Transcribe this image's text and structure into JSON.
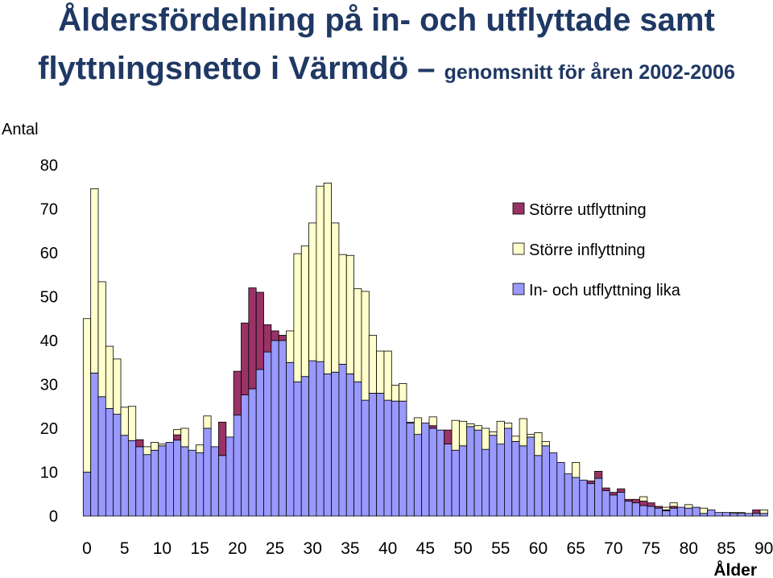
{
  "title": {
    "line1": "Åldersfördelning på in- och utflyttade samt",
    "line2_main": "flyttningsnetto i Värmdö –",
    "line2_sub": "genomsnitt för åren 2002-2006"
  },
  "chart_data": {
    "type": "bar",
    "stacked": true,
    "ylabel": "Antal",
    "xlabel": "Ålder",
    "ylim": [
      0,
      80
    ],
    "yticks": [
      0,
      10,
      20,
      30,
      40,
      50,
      60,
      70,
      80
    ],
    "xticks": [
      0,
      5,
      10,
      15,
      20,
      25,
      30,
      35,
      40,
      45,
      50,
      55,
      60,
      65,
      70,
      75,
      80,
      85,
      90
    ],
    "xlim": [
      -1,
      90
    ],
    "legend_position": "right",
    "grid": false,
    "x": [
      0,
      1,
      2,
      3,
      4,
      5,
      6,
      7,
      8,
      9,
      10,
      11,
      12,
      13,
      14,
      15,
      16,
      17,
      18,
      19,
      20,
      21,
      22,
      23,
      24,
      25,
      26,
      27,
      28,
      29,
      30,
      31,
      32,
      33,
      34,
      35,
      36,
      37,
      38,
      39,
      40,
      41,
      42,
      43,
      44,
      45,
      46,
      47,
      48,
      49,
      50,
      51,
      52,
      53,
      54,
      55,
      56,
      57,
      58,
      59,
      60,
      61,
      62,
      63,
      64,
      65,
      66,
      67,
      68,
      69,
      70,
      71,
      72,
      73,
      74,
      75,
      76,
      77,
      78,
      79,
      80,
      81,
      82,
      83,
      84,
      85,
      86,
      87,
      88,
      89,
      90
    ],
    "series": [
      {
        "name": "In- och utflyttning lika",
        "color": "#9999ff",
        "values": [
          10,
          32.6,
          27.2,
          24.5,
          23.2,
          18.4,
          17.2,
          15.8,
          14.0,
          15.0,
          16.0,
          16.8,
          17.3,
          15.8,
          15.0,
          14.4,
          20.0,
          15.8,
          13.8,
          18.0,
          23.0,
          27.6,
          29.0,
          33.4,
          37.4,
          40.0,
          40.0,
          35.0,
          30.6,
          31.8,
          35.4,
          35.2,
          32.4,
          32.8,
          34.6,
          32.4,
          30.6,
          26.4,
          28.0,
          28.0,
          26.4,
          26.2,
          26.2,
          21.2,
          18.6,
          21.2,
          20.0,
          19.6,
          16.4,
          15.0,
          16.0,
          20.4,
          19.6,
          15.2,
          18.4,
          16.4,
          20.0,
          17.0,
          16.0,
          18.0,
          13.8,
          16.0,
          14.4,
          12.2,
          9.6,
          8.8,
          8.2,
          7.4,
          8.6,
          5.8,
          4.8,
          5.4,
          3.4,
          3.0,
          2.4,
          2.2,
          1.8,
          1.2,
          1.8,
          2.0,
          1.8,
          2.0,
          0.6,
          1.4,
          0.8,
          0.8,
          0.6,
          0.6,
          0.6,
          0.6,
          0.6
        ]
      },
      {
        "name": "Större utflyttning",
        "color": "#993366",
        "values": [
          0,
          0,
          0,
          0,
          0,
          0,
          0,
          1.6,
          0,
          0,
          0,
          0,
          1.2,
          0,
          0,
          0,
          0,
          0,
          7.6,
          0,
          10,
          16.4,
          23.0,
          17.6,
          6.2,
          2.2,
          1.2,
          0,
          0,
          0,
          0,
          0,
          0,
          0,
          0,
          0,
          0,
          0,
          0,
          0,
          0,
          0,
          0,
          0,
          0,
          0,
          0.6,
          0,
          3.2,
          0,
          0,
          0,
          0,
          0,
          0,
          0,
          0,
          0,
          0,
          0,
          0,
          0,
          0,
          0,
          0,
          0,
          0,
          0.6,
          1.6,
          0.6,
          0.6,
          0.8,
          0.4,
          0.8,
          1.0,
          0.8,
          0.4,
          0.2,
          0.4,
          0,
          0,
          0,
          0,
          0,
          0,
          0,
          0,
          0,
          0,
          0.8,
          0
        ]
      },
      {
        "name": "Större inflyttning",
        "color": "#ffffcc",
        "values": [
          35,
          42,
          26.2,
          14.2,
          12.6,
          6.4,
          7.8,
          0,
          1.8,
          1.8,
          0.4,
          0,
          1.2,
          4.2,
          0,
          1.8,
          2.8,
          0,
          0,
          0,
          0,
          0,
          0,
          0,
          0,
          0,
          0,
          7.2,
          29.2,
          29.8,
          31.4,
          40,
          43.5,
          34,
          25,
          27,
          21.2,
          24.8,
          13.2,
          9.6,
          11.2,
          3.6,
          4.0,
          0.2,
          3.8,
          0,
          2.0,
          0,
          0,
          6.8,
          5.6,
          0.6,
          1.0,
          4.8,
          0.8,
          5.2,
          1.2,
          1.2,
          6.2,
          0.6,
          5.2,
          1.0,
          0,
          0,
          0,
          3.4,
          0,
          0,
          0,
          0,
          0,
          0,
          0,
          0,
          1.0,
          0,
          0,
          0.6,
          0.8,
          0,
          0.8,
          0,
          1.2,
          0,
          0,
          0,
          0.2,
          0.2,
          0,
          0,
          0.8
        ]
      }
    ],
    "legend_order": [
      "Större utflyttning",
      "Större inflyttning",
      "In- och utflyttning lika"
    ]
  }
}
